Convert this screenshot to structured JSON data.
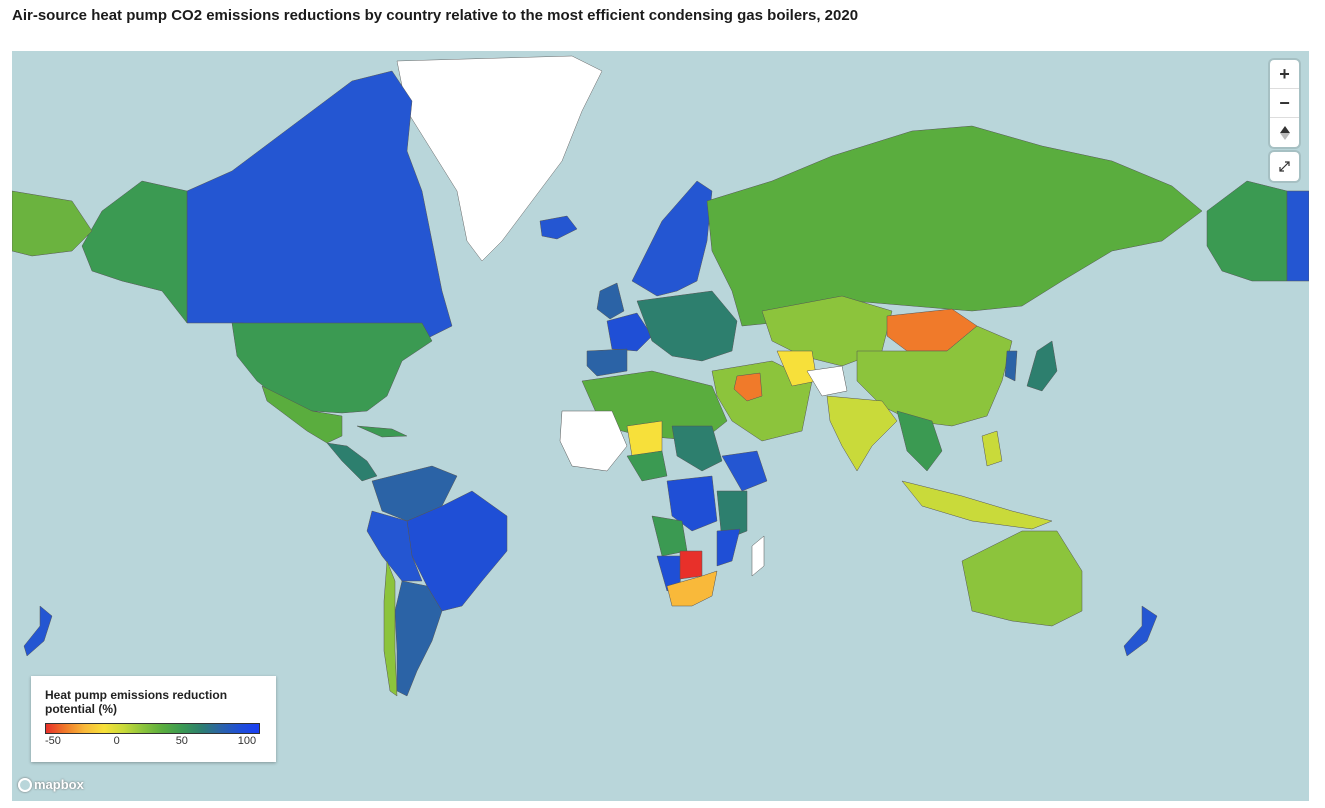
{
  "title": "Air-source heat pump CO2 emissions reductions by country relative to the most efficient condensing gas boilers, 2020",
  "map_controls": {
    "zoom_in_label": "+",
    "zoom_out_label": "−",
    "compass_label": "▲",
    "fullscreen_icon": "fullscreen-icon"
  },
  "legend": {
    "title": "Heat pump emissions reduction potential (%)",
    "ticks": [
      "-50",
      "0",
      "50",
      "100"
    ],
    "tick_values": [
      -50,
      0,
      50,
      100
    ],
    "range": [
      -55,
      110
    ],
    "colors": [
      "#e8302a",
      "#f07a2a",
      "#f9b93a",
      "#f7e03a",
      "#c9da3a",
      "#8cc43c",
      "#5aad3e",
      "#3b9a52",
      "#2d7f6e",
      "#2b63a6",
      "#1f4fd6",
      "#1a3ff5"
    ]
  },
  "attribution": {
    "logo_text": "mapbox"
  },
  "palette": {
    "ocean": "#b9d6da",
    "nodata": "#ffffff"
  }
}
